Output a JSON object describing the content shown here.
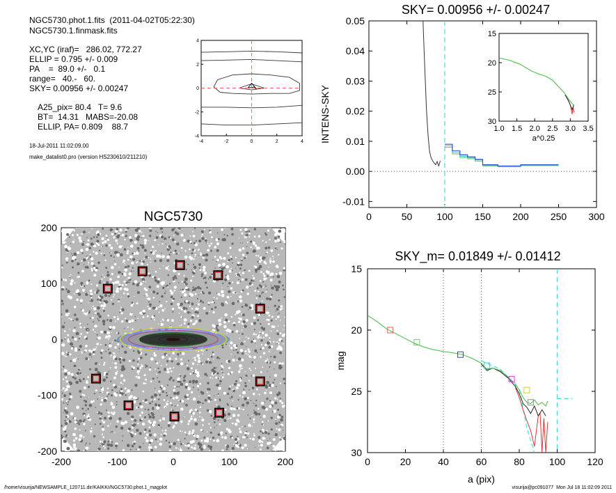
{
  "header": {
    "line1": "NGC5730.phot.1.fits  (2011-04-02T05:22:30)",
    "line2": "NGC5730.1.finmask.fits",
    "params": [
      "XC,YC (iraf)=   286.02, 772.27",
      "ELLIP = 0.795 +/- 0.009",
      "PA    =  89.0 +/-   0.1",
      "range=   40.-   60.",
      "SKY= 0.00956 +/- 0.00247"
    ],
    "results": [
      "A25_pix= 80.4   T= 9.6",
      "BT=  14.31   MABS=-20.08",
      "ELLIP, PA= 0.809    88.7"
    ],
    "date": "18-Jul-2011 11:02:09.00",
    "program": "make_datalist0.pro (version HS230610/211210)"
  },
  "footer": {
    "left": "/home/visurija/NEWSAMPLE_120711.dir/KAIKKI/NGC5730.phot.1_magplot",
    "right": "visurija@pc091077  Mon Jul 18 11:02:09 2011"
  },
  "chart_data": [
    {
      "id": "contour",
      "type": "line",
      "xlim": [
        -4,
        4
      ],
      "ylim": [
        -4,
        4
      ],
      "xticks": [
        -4,
        -2,
        0,
        2,
        4
      ],
      "yticks": [
        -4,
        -2,
        0,
        2,
        4
      ],
      "contours": [
        [
          [
            -4,
            3.0
          ],
          [
            -2,
            3.05
          ],
          [
            0,
            3.1
          ],
          [
            2,
            3.05
          ],
          [
            4,
            2.95
          ]
        ],
        [
          [
            -4,
            2.3
          ],
          [
            -2,
            2.35
          ],
          [
            0,
            2.4
          ],
          [
            2,
            2.3
          ],
          [
            4,
            2.2
          ]
        ],
        [
          [
            -4,
            -3.0
          ],
          [
            -2,
            -3.1
          ],
          [
            0,
            -3.1
          ],
          [
            2,
            -3.0
          ],
          [
            4,
            -2.9
          ]
        ],
        [
          [
            -4,
            -1.6
          ],
          [
            -2,
            -1.6
          ],
          [
            0,
            -1.65
          ],
          [
            2,
            -1.6
          ],
          [
            4,
            -1.45
          ]
        ],
        [
          [
            -2.5,
            -0.35
          ],
          [
            -3,
            0.1
          ],
          [
            -2.7,
            0.7
          ],
          [
            -1.5,
            1.1
          ],
          [
            0,
            1.2
          ],
          [
            1.5,
            1.1
          ],
          [
            3,
            0.9
          ],
          [
            3.8,
            0.4
          ],
          [
            3.8,
            -0.2
          ],
          [
            3,
            -0.45
          ],
          [
            1.5,
            -0.45
          ],
          [
            0,
            -0.5
          ],
          [
            -1.5,
            -0.45
          ],
          [
            -2.5,
            -0.35
          ]
        ],
        [
          [
            -1,
            0
          ],
          [
            0,
            0.35
          ],
          [
            1,
            0
          ],
          [
            0,
            -0.15
          ],
          [
            -1,
            0
          ]
        ]
      ],
      "center_shape": [
        [
          -0.3,
          0
        ],
        [
          0,
          0.4
        ],
        [
          0.4,
          -0.1
        ],
        [
          0.2,
          0.1
        ],
        [
          -0.3,
          0
        ]
      ],
      "dash_color": "#ff6666",
      "contour_color": "#333333"
    },
    {
      "id": "sky",
      "type": "line",
      "title": "SKY= 0.00956 +/- 0.00247",
      "ylabel": "INTENS-SKY",
      "xlim": [
        0,
        300
      ],
      "ylim": [
        -0.012,
        0.05
      ],
      "xticks": [
        0,
        50,
        100,
        150,
        200,
        250,
        300
      ],
      "yticks": [
        -0.01,
        0.0,
        0.01,
        0.02,
        0.03,
        0.04,
        0.05
      ],
      "ytick_labels": [
        "-0.01",
        "0.00",
        "0.01",
        "0.02",
        "0.03",
        "0.04",
        "0.05"
      ],
      "vline_x": 100,
      "profile": {
        "x": [
          70,
          72,
          74,
          76,
          78,
          80,
          82,
          84,
          86,
          88,
          90,
          92,
          94
        ],
        "y": [
          0.06,
          0.045,
          0.032,
          0.02,
          0.012,
          0.0065,
          0.0045,
          0.0035,
          0.0028,
          0.0022,
          0.0033,
          0.0018,
          0.0035
        ]
      },
      "steps_blue": {
        "x": [
          100,
          110,
          120,
          130,
          140,
          150,
          170,
          200,
          250
        ],
        "y": [
          0.009,
          0.0068,
          0.0055,
          0.0048,
          0.004,
          0.0022,
          0.0018,
          0.0022,
          0.0024
        ]
      },
      "steps_cyan": {
        "x": [
          100,
          110,
          120,
          130,
          140,
          150,
          170,
          200,
          250
        ],
        "y": [
          0.0085,
          0.0062,
          0.005,
          0.0045,
          0.0038,
          0.002,
          0.0016,
          0.002,
          0.0023
        ]
      },
      "steps_green": {
        "x": [
          100,
          110,
          120,
          130,
          140,
          150,
          170,
          200,
          250
        ],
        "y": [
          0.008,
          0.0058,
          0.0046,
          0.0042,
          0.0034,
          0.0018,
          0.0015,
          0.0019,
          0.0022
        ]
      },
      "inset": {
        "xlabel": "a^0.25",
        "xlim": [
          1.0,
          3.5
        ],
        "ylim": [
          15,
          30
        ],
        "xticks": [
          1.0,
          1.5,
          2.0,
          2.5,
          3.0,
          3.5
        ],
        "xtick_labels": [
          "1.0",
          "1.5",
          "2.0",
          "2.5",
          "3.0",
          "3.5"
        ],
        "yticks": [
          15,
          20,
          25,
          30
        ],
        "green": {
          "x": [
            1.0,
            1.3,
            1.6,
            1.9,
            2.1,
            2.3,
            2.5,
            2.7,
            2.85,
            2.95,
            3.05,
            3.1
          ],
          "y": [
            19.2,
            19.6,
            20.3,
            21.4,
            21.9,
            22.3,
            23.0,
            24.3,
            25.3,
            26.2,
            27.0,
            27.3
          ]
        },
        "black": {
          "x": [
            2.85,
            2.95,
            3.0,
            3.05,
            3.1
          ],
          "y": [
            25.5,
            26.5,
            27.3,
            28.0,
            27.2
          ]
        },
        "red": {
          "x": [
            2.9,
            3.0,
            3.05,
            3.08,
            3.1
          ],
          "y": [
            26.0,
            27.2,
            28.8,
            27.5,
            28.5
          ]
        }
      }
    },
    {
      "id": "image",
      "type": "scatter",
      "title": "NGC5730",
      "xlim": [
        -200,
        200
      ],
      "ylim": [
        -200,
        200
      ],
      "xticks": [
        -200,
        -100,
        0,
        100,
        200
      ],
      "yticks": [
        -200,
        -100,
        0,
        100,
        200
      ],
      "markers": [
        [
          -55,
          122
        ],
        [
          12,
          133
        ],
        [
          80,
          115
        ],
        [
          -117,
          91
        ],
        [
          155,
          55
        ],
        [
          -138,
          -70
        ],
        [
          -80,
          -118
        ],
        [
          2,
          -138
        ],
        [
          82,
          -131
        ],
        [
          155,
          -75
        ]
      ],
      "ellipses": [
        {
          "a": 100,
          "b": 15,
          "color": "#5b9bd5"
        },
        {
          "a": 95,
          "b": 21,
          "color": "#cccc44"
        },
        {
          "a": 88,
          "b": 19,
          "color": "#8888ff"
        },
        {
          "a": 80,
          "b": 16,
          "color": "#a45aa0"
        },
        {
          "a": 60,
          "b": 12,
          "color": "#226622"
        },
        {
          "a": 42,
          "b": 8,
          "color": "#22aa22"
        },
        {
          "a": 26,
          "b": 5,
          "color": "#555555"
        },
        {
          "a": 12,
          "b": 2.5,
          "color": "#aa0000"
        }
      ]
    },
    {
      "id": "mag",
      "type": "line",
      "title": "SKY_m=  0.01849 +/- 0.01412",
      "xlabel": "a (pix)",
      "ylabel": "mag",
      "xlim": [
        0,
        120
      ],
      "ylim": [
        30,
        15
      ],
      "xticks": [
        0,
        20,
        40,
        60,
        80,
        100,
        120
      ],
      "yticks": [
        15,
        20,
        25,
        30
      ],
      "dotted_x": [
        40,
        60
      ],
      "green": {
        "x": [
          0,
          5,
          10,
          15,
          20,
          25,
          30,
          35,
          40,
          45,
          50,
          55,
          60,
          63,
          66,
          70,
          74,
          78,
          80,
          82,
          84,
          86,
          88,
          90,
          92,
          94,
          95
        ],
        "y": [
          18.8,
          19.3,
          19.9,
          20.3,
          20.7,
          21.1,
          21.4,
          21.6,
          21.75,
          21.85,
          22.0,
          22.3,
          22.7,
          23.2,
          23.1,
          23.3,
          23.8,
          24.4,
          24.9,
          25.5,
          25.9,
          26.0,
          25.7,
          26.1,
          25.9,
          26.2,
          25.8
        ]
      },
      "black": {
        "x": [
          60,
          63,
          66,
          70,
          74,
          78,
          80,
          82,
          84,
          86,
          88,
          90,
          92,
          94
        ],
        "y": [
          22.8,
          23.3,
          23.1,
          23.4,
          23.9,
          24.6,
          25.2,
          26.0,
          26.3,
          26.8,
          26.2,
          27.0,
          26.5,
          27.0
        ]
      },
      "red": {
        "x": [
          78,
          80,
          82,
          84,
          86,
          88,
          90,
          91,
          92,
          93,
          94,
          95
        ],
        "y": [
          24.7,
          25.5,
          26.5,
          27.4,
          28.2,
          29.5,
          27.0,
          26.8,
          30.0,
          27.2,
          30.0,
          27.5
        ]
      },
      "cyan_dashed": {
        "x": [
          60,
          70,
          80,
          84,
          88
        ],
        "y": [
          22.5,
          23.2,
          24.8,
          28.0,
          30.0
        ]
      },
      "cyan_sky": {
        "x1": 100,
        "x2": 108,
        "y": 25.6,
        "vx": 100
      },
      "squares": [
        {
          "x": 12,
          "y": 20.0,
          "color": "#e06060"
        },
        {
          "x": 26,
          "y": 21.0,
          "color": "#66cc66"
        },
        {
          "x": 49,
          "y": 22.0,
          "color": "#3344cc"
        },
        {
          "x": 63,
          "y": 22.9,
          "color": "#44cccc"
        },
        {
          "x": 76,
          "y": 24.0,
          "color": "#cc44cc"
        },
        {
          "x": 84,
          "y": 24.9,
          "color": "#cccc44"
        },
        {
          "x": 86,
          "y": 25.9,
          "color": "#888888"
        }
      ]
    }
  ]
}
